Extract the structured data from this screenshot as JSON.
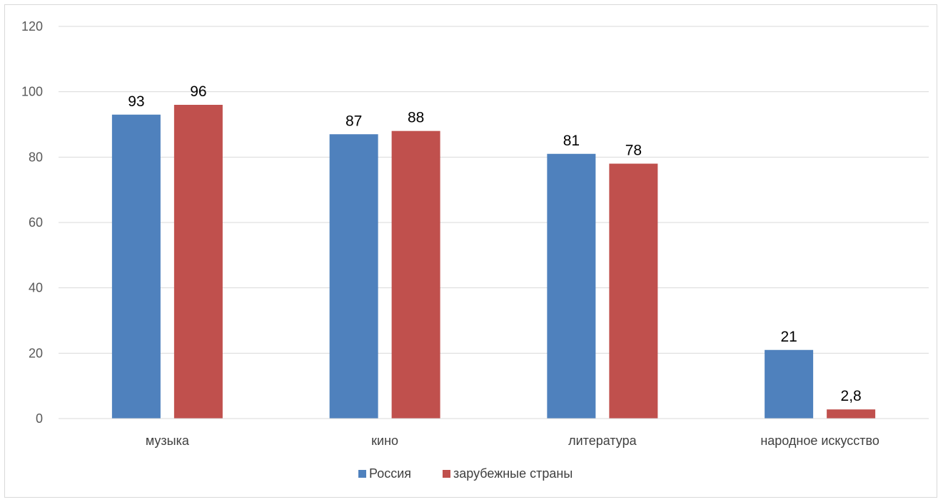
{
  "chart_data": {
    "type": "bar",
    "categories": [
      "музыка",
      "кино",
      "литература",
      "народное искусство"
    ],
    "series": [
      {
        "name": "Россия",
        "values": [
          93,
          87,
          81,
          21
        ],
        "labels": [
          "93",
          "87",
          "81",
          "21"
        ],
        "color": "#4f81bd"
      },
      {
        "name": "зарубежные страны",
        "values": [
          96,
          88,
          78,
          2.8
        ],
        "labels": [
          "96",
          "88",
          "78",
          "2,8"
        ],
        "color": "#c0504d"
      }
    ],
    "ylim": [
      0,
      120
    ],
    "yticks": [
      0,
      20,
      40,
      60,
      80,
      100,
      120
    ],
    "grid": true,
    "legend_position": "bottom",
    "title": "",
    "xlabel": "",
    "ylabel": ""
  }
}
